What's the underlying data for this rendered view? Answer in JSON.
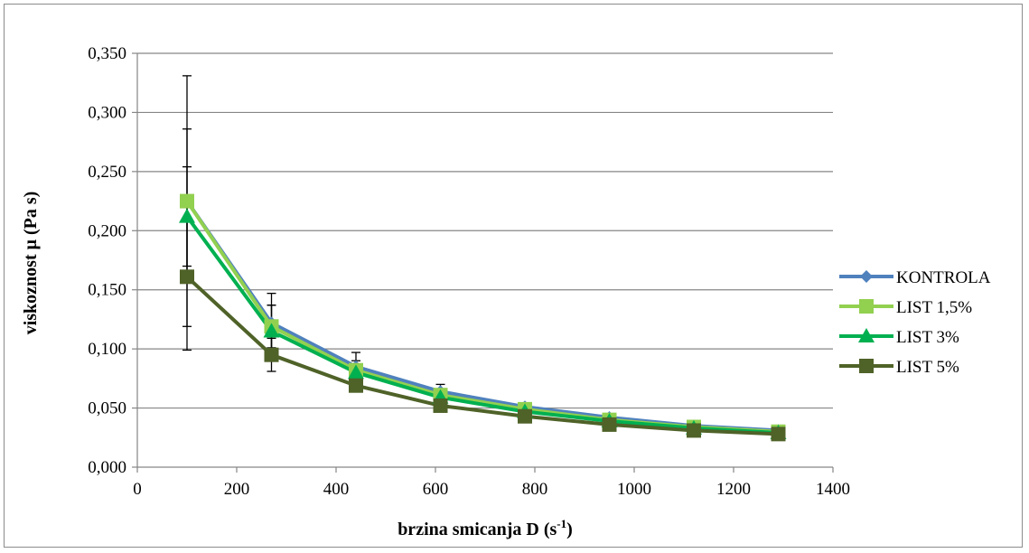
{
  "chart_data": {
    "type": "line",
    "title": "",
    "xlabel": "brzina smicanja D (s",
    "xlabel_sup": "-1",
    "xlabel_tail": ")",
    "ylabel": "viskoznost μ (Pa s)",
    "xlim": [
      0,
      1400
    ],
    "ylim": [
      0,
      0.35
    ],
    "x_ticks": [
      "0",
      "200",
      "400",
      "600",
      "800",
      "1000",
      "1200",
      "1400"
    ],
    "y_ticks": [
      "0,000",
      "0,050",
      "0,100",
      "0,150",
      "0,200",
      "0,250",
      "0,300",
      "0,350"
    ],
    "grid": "horizontal",
    "legend_position": "right",
    "x": [
      100,
      270,
      440,
      610,
      780,
      950,
      1120,
      1290
    ],
    "series": [
      {
        "name": "KONTROLA",
        "color": "#4f81bd",
        "marker": "diamond",
        "values": [
          0.225,
          0.122,
          0.085,
          0.064,
          0.051,
          0.042,
          0.035,
          0.031
        ],
        "error": [
          0.106,
          0.025,
          0.012,
          0.006,
          0,
          0,
          0,
          0
        ]
      },
      {
        "name": "LIST 1,5%",
        "color": "#92d050",
        "marker": "square",
        "values": [
          0.225,
          0.119,
          0.082,
          0.061,
          0.049,
          0.04,
          0.034,
          0.03
        ],
        "error": [
          0.061,
          0.018,
          0.008,
          0.004,
          0,
          0,
          0,
          0
        ]
      },
      {
        "name": "LIST 3%",
        "color": "#00b050",
        "marker": "triangle",
        "values": [
          0.212,
          0.115,
          0.08,
          0.059,
          0.047,
          0.039,
          0.033,
          0.029
        ],
        "error": [
          0.042,
          0.022,
          0.005,
          0.004,
          0,
          0,
          0,
          0
        ]
      },
      {
        "name": "LIST 5%",
        "color": "#4f6228",
        "marker": "square",
        "values": [
          0.161,
          0.095,
          0.069,
          0.052,
          0.043,
          0.036,
          0.031,
          0.028
        ],
        "error": [
          0.062,
          0.014,
          0.004,
          0.003,
          0,
          0,
          0,
          0
        ]
      }
    ]
  }
}
